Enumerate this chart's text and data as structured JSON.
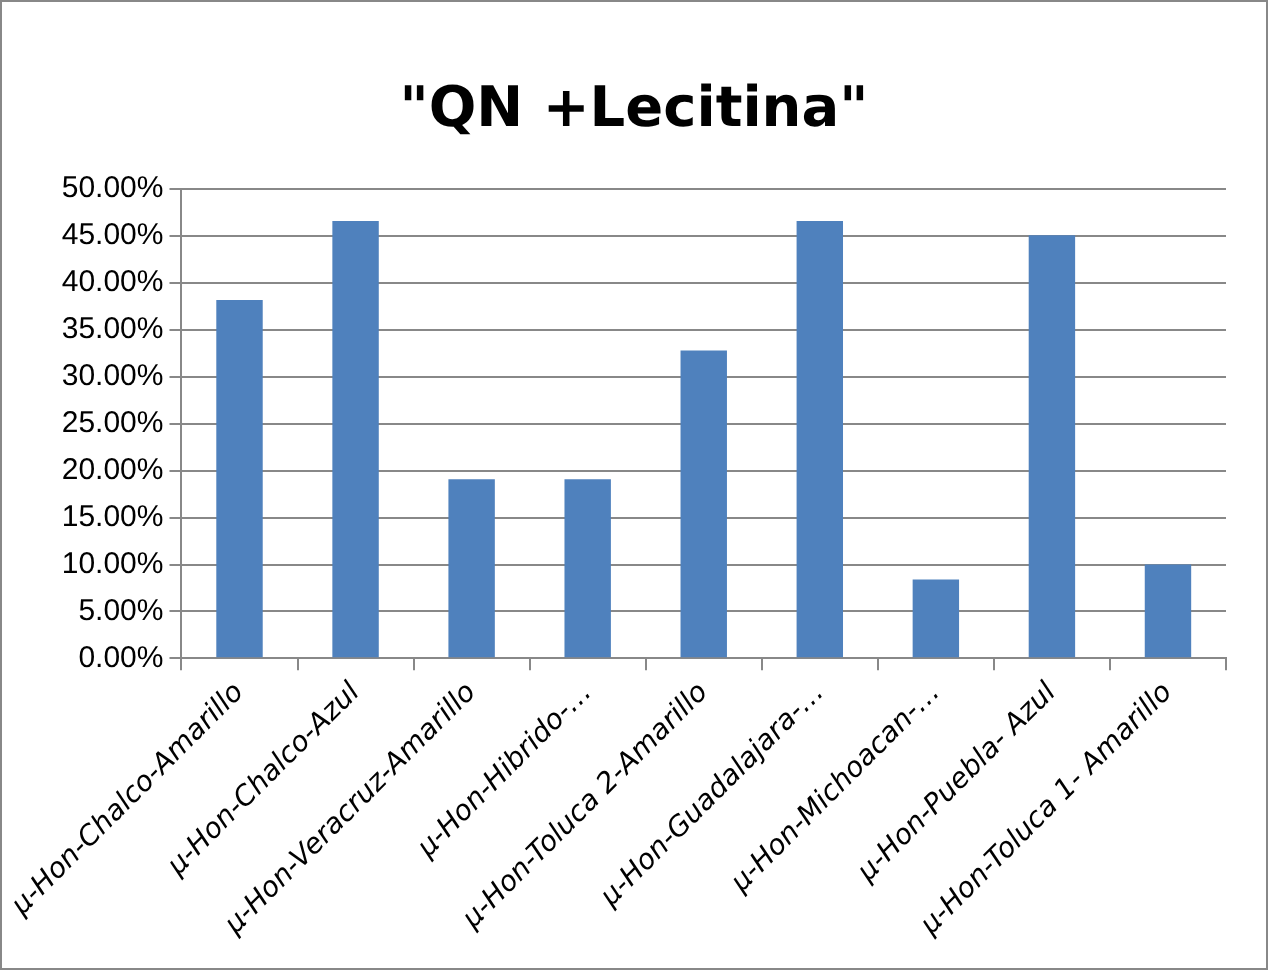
{
  "chart_data": {
    "type": "bar",
    "title": "\"QN +Lecitina\"",
    "categories": [
      "µ-Hon-Chalco-Amarillo",
      "µ-Hon-Chalco-Azul",
      "µ-Hon-Veracruz-Amarillo",
      "µ-Hon-Hibrido-…",
      "µ-Hon-Toluca 2-Amarillo",
      "µ-Hon-Guadalajara-…",
      "µ-Hon-Michoacan-…",
      "µ-Hon-Puebla- Azul",
      "µ-Hon-Toluca 1- Amarillo"
    ],
    "values": [
      38.2,
      46.6,
      19.1,
      19.1,
      32.8,
      46.6,
      8.4,
      45.1,
      10.0
    ],
    "color": "#4f81bd",
    "ylim": [
      0,
      50
    ],
    "yticks": [
      {
        "value": 0,
        "label": "0.00%"
      },
      {
        "value": 5,
        "label": "5.00%"
      },
      {
        "value": 10,
        "label": "10.00%"
      },
      {
        "value": 15,
        "label": "15.00%"
      },
      {
        "value": 20,
        "label": "20.00%"
      },
      {
        "value": 25,
        "label": "25.00%"
      },
      {
        "value": 30,
        "label": "30.00%"
      },
      {
        "value": 35,
        "label": "35.00%"
      },
      {
        "value": 40,
        "label": "40.00%"
      },
      {
        "value": 45,
        "label": "45.00%"
      },
      {
        "value": 50,
        "label": "50.00%"
      }
    ],
    "grid": "y",
    "legend": false
  }
}
